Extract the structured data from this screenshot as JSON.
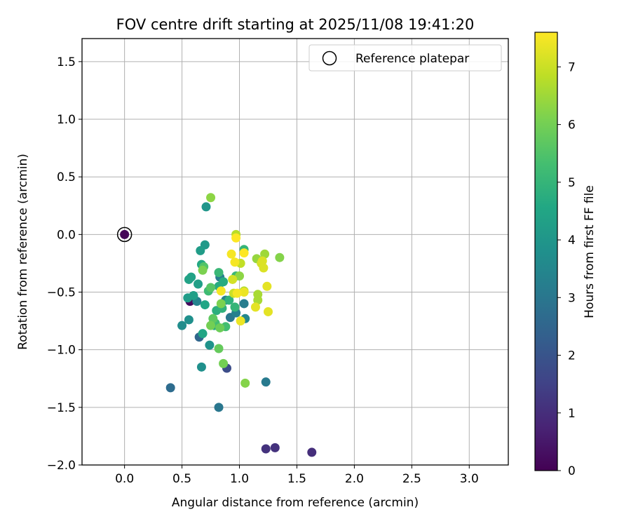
{
  "chart_data": {
    "type": "scatter",
    "title": "FOV centre drift starting at 2025/11/08 19:41:20",
    "xlabel": "Angular distance from reference (arcmin)",
    "ylabel": "Rotation from reference (arcmin)",
    "xlim": [
      -0.37,
      3.34
    ],
    "ylim": [
      -2.0,
      1.7
    ],
    "xticks": [
      0.0,
      0.5,
      1.0,
      1.5,
      2.0,
      2.5,
      3.0
    ],
    "xtick_labels": [
      "0.0",
      "0.5",
      "1.0",
      "1.5",
      "2.0",
      "2.5",
      "3.0"
    ],
    "yticks": [
      -2.0,
      -1.5,
      -1.0,
      -0.5,
      0.0,
      0.5,
      1.0,
      1.5
    ],
    "ytick_labels": [
      "−2.0",
      "−1.5",
      "−1.0",
      "−0.5",
      "0.0",
      "0.5",
      "1.0",
      "1.5"
    ],
    "grid": true,
    "legend": {
      "position": "top-right",
      "entries": [
        "Reference platepar"
      ]
    },
    "colorbar": {
      "label": "Hours from first FF file",
      "colormap": "viridis",
      "range": [
        0,
        7.6
      ],
      "ticks": [
        0,
        1,
        2,
        3,
        4,
        5,
        6,
        7
      ],
      "tick_labels": [
        "0",
        "1",
        "2",
        "3",
        "4",
        "5",
        "6",
        "7"
      ]
    },
    "reference": {
      "x": 0.0,
      "y": 0.0,
      "name": "Reference platepar"
    },
    "points": [
      {
        "x": 0.0,
        "y": 0.0,
        "h": 0.1
      },
      {
        "x": 0.57,
        "y": -0.58,
        "h": 0.2
      },
      {
        "x": 1.63,
        "y": -1.89,
        "h": 1.0
      },
      {
        "x": 1.23,
        "y": -1.86,
        "h": 1.1
      },
      {
        "x": 1.31,
        "y": -1.85,
        "h": 1.1
      },
      {
        "x": 0.89,
        "y": -1.16,
        "h": 1.8
      },
      {
        "x": 0.4,
        "y": -1.33,
        "h": 2.7
      },
      {
        "x": 0.65,
        "y": -0.89,
        "h": 2.5
      },
      {
        "x": 0.82,
        "y": -1.5,
        "h": 3.0
      },
      {
        "x": 1.23,
        "y": -1.28,
        "h": 3.1
      },
      {
        "x": 0.92,
        "y": -0.72,
        "h": 3.0
      },
      {
        "x": 1.04,
        "y": -0.6,
        "h": 3.2
      },
      {
        "x": 0.88,
        "y": -0.57,
        "h": 3.3
      },
      {
        "x": 0.97,
        "y": -0.68,
        "h": 3.3
      },
      {
        "x": 0.83,
        "y": -0.37,
        "h": 3.2
      },
      {
        "x": 0.63,
        "y": -0.58,
        "h": 3.4
      },
      {
        "x": 1.05,
        "y": -0.73,
        "h": 3.5
      },
      {
        "x": 0.5,
        "y": -0.79,
        "h": 3.7
      },
      {
        "x": 0.56,
        "y": -0.74,
        "h": 3.8
      },
      {
        "x": 0.67,
        "y": -1.15,
        "h": 3.8
      },
      {
        "x": 0.74,
        "y": -0.96,
        "h": 3.9
      },
      {
        "x": 0.71,
        "y": 0.24,
        "h": 4.0
      },
      {
        "x": 0.7,
        "y": -0.09,
        "h": 4.1
      },
      {
        "x": 0.66,
        "y": -0.14,
        "h": 4.2
      },
      {
        "x": 0.55,
        "y": -0.55,
        "h": 4.2
      },
      {
        "x": 0.6,
        "y": -0.53,
        "h": 4.3
      },
      {
        "x": 0.64,
        "y": -0.43,
        "h": 4.3
      },
      {
        "x": 0.58,
        "y": -0.37,
        "h": 4.4
      },
      {
        "x": 0.56,
        "y": -0.39,
        "h": 4.4
      },
      {
        "x": 0.7,
        "y": -0.61,
        "h": 4.5
      },
      {
        "x": 0.68,
        "y": -0.86,
        "h": 4.5
      },
      {
        "x": 0.67,
        "y": -0.26,
        "h": 4.6
      },
      {
        "x": 0.78,
        "y": -0.79,
        "h": 4.6
      },
      {
        "x": 0.82,
        "y": -0.45,
        "h": 4.7
      },
      {
        "x": 0.86,
        "y": -0.41,
        "h": 4.7
      },
      {
        "x": 0.8,
        "y": -0.66,
        "h": 4.8
      },
      {
        "x": 0.85,
        "y": -0.64,
        "h": 4.9
      },
      {
        "x": 0.91,
        "y": -0.57,
        "h": 4.9
      },
      {
        "x": 0.96,
        "y": -0.63,
        "h": 5.0
      },
      {
        "x": 1.04,
        "y": -0.13,
        "h": 5.0
      },
      {
        "x": 0.97,
        "y": -0.36,
        "h": 5.1
      },
      {
        "x": 0.82,
        "y": -0.33,
        "h": 5.1
      },
      {
        "x": 0.73,
        "y": -0.49,
        "h": 5.2
      },
      {
        "x": 0.88,
        "y": -0.8,
        "h": 5.3
      },
      {
        "x": 0.79,
        "y": -0.77,
        "h": 5.3
      },
      {
        "x": 0.69,
        "y": -0.28,
        "h": 5.5
      },
      {
        "x": 0.75,
        "y": -0.46,
        "h": 5.6
      },
      {
        "x": 0.77,
        "y": -0.73,
        "h": 5.7
      },
      {
        "x": 0.82,
        "y": -0.99,
        "h": 5.8
      },
      {
        "x": 0.83,
        "y": -0.81,
        "h": 5.9
      },
      {
        "x": 0.86,
        "y": -1.12,
        "h": 6.0
      },
      {
        "x": 0.75,
        "y": -0.79,
        "h": 6.0
      },
      {
        "x": 0.84,
        "y": -0.6,
        "h": 6.1
      },
      {
        "x": 0.68,
        "y": -0.31,
        "h": 6.1
      },
      {
        "x": 1.05,
        "y": -1.29,
        "h": 6.2
      },
      {
        "x": 1.35,
        "y": -0.2,
        "h": 6.2
      },
      {
        "x": 0.75,
        "y": 0.32,
        "h": 6.3
      },
      {
        "x": 1.0,
        "y": -0.36,
        "h": 6.3
      },
      {
        "x": 1.15,
        "y": -0.21,
        "h": 6.4
      },
      {
        "x": 1.22,
        "y": -0.17,
        "h": 6.5
      },
      {
        "x": 1.16,
        "y": -0.52,
        "h": 6.6
      },
      {
        "x": 1.16,
        "y": -0.57,
        "h": 6.6
      },
      {
        "x": 1.04,
        "y": -0.49,
        "h": 6.7
      },
      {
        "x": 0.97,
        "y": 0.0,
        "h": 6.8
      },
      {
        "x": 1.01,
        "y": -0.25,
        "h": 6.9
      },
      {
        "x": 0.95,
        "y": -0.51,
        "h": 7.0
      },
      {
        "x": 0.94,
        "y": -0.39,
        "h": 7.1
      },
      {
        "x": 1.19,
        "y": -0.25,
        "h": 7.1
      },
      {
        "x": 1.2,
        "y": -0.23,
        "h": 7.2
      },
      {
        "x": 1.21,
        "y": -0.29,
        "h": 7.2
      },
      {
        "x": 1.24,
        "y": -0.45,
        "h": 7.3
      },
      {
        "x": 1.25,
        "y": -0.67,
        "h": 7.3
      },
      {
        "x": 1.14,
        "y": -0.63,
        "h": 7.3
      },
      {
        "x": 1.01,
        "y": -0.75,
        "h": 7.4
      },
      {
        "x": 1.04,
        "y": -0.5,
        "h": 7.4
      },
      {
        "x": 0.98,
        "y": -0.51,
        "h": 7.5
      },
      {
        "x": 0.84,
        "y": -0.49,
        "h": 7.5
      },
      {
        "x": 0.93,
        "y": -0.17,
        "h": 7.5
      },
      {
        "x": 0.96,
        "y": -0.24,
        "h": 7.5
      },
      {
        "x": 0.97,
        "y": -0.03,
        "h": 7.6
      },
      {
        "x": 1.04,
        "y": -0.16,
        "h": 7.6
      }
    ]
  }
}
